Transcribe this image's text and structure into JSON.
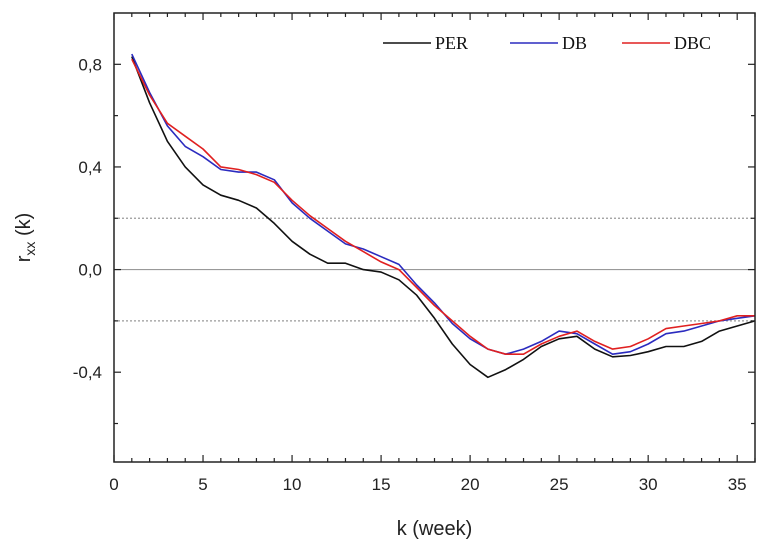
{
  "chart_data": {
    "type": "line",
    "xlabel": "k (week)",
    "ylabel_main": "r",
    "ylabel_sub": "xx",
    "ylabel_suffix": " (k)",
    "xlim": [
      0,
      36
    ],
    "ylim": [
      -0.75,
      1.0
    ],
    "xticks": [
      0,
      5,
      10,
      15,
      20,
      25,
      30,
      35
    ],
    "xtick_labels": [
      "0",
      "5",
      "10",
      "15",
      "20",
      "25",
      "30",
      "35"
    ],
    "yticks": [
      0.8,
      0.4,
      0.0,
      -0.4
    ],
    "ytick_labels": [
      "0,8",
      "0,4",
      "0,0",
      "-0,4"
    ],
    "reference_lines": [
      {
        "y": 0.0,
        "style": "solid",
        "color": "#999999"
      },
      {
        "y": 0.2,
        "style": "dotted",
        "color": "#999999"
      },
      {
        "y": -0.2,
        "style": "dotted",
        "color": "#999999"
      }
    ],
    "legend_position": "top-right",
    "x": [
      1,
      2,
      3,
      4,
      5,
      6,
      7,
      8,
      9,
      10,
      11,
      12,
      13,
      14,
      15,
      16,
      17,
      18,
      19,
      20,
      21,
      22,
      23,
      24,
      25,
      26,
      27,
      28,
      29,
      30,
      31,
      32,
      33,
      34,
      35,
      36
    ],
    "series": [
      {
        "name": "PER",
        "color": "#111111",
        "values": [
          0.83,
          0.65,
          0.5,
          0.4,
          0.33,
          0.29,
          0.27,
          0.24,
          0.18,
          0.11,
          0.06,
          0.025,
          0.025,
          0.0,
          -0.01,
          -0.04,
          -0.1,
          -0.19,
          -0.29,
          -0.37,
          -0.42,
          -0.39,
          -0.35,
          -0.3,
          -0.27,
          -0.26,
          -0.31,
          -0.34,
          -0.335,
          -0.32,
          -0.3,
          -0.3,
          -0.28,
          -0.24,
          -0.22,
          -0.2
        ]
      },
      {
        "name": "DB",
        "color": "#2b2bbf",
        "values": [
          0.84,
          0.69,
          0.56,
          0.48,
          0.44,
          0.39,
          0.38,
          0.38,
          0.35,
          0.26,
          0.2,
          0.15,
          0.1,
          0.08,
          0.05,
          0.02,
          -0.06,
          -0.13,
          -0.21,
          -0.27,
          -0.31,
          -0.33,
          -0.31,
          -0.28,
          -0.24,
          -0.25,
          -0.29,
          -0.33,
          -0.32,
          -0.29,
          -0.25,
          -0.24,
          -0.22,
          -0.2,
          -0.19,
          -0.18
        ]
      },
      {
        "name": "DBC",
        "color": "#e02020",
        "values": [
          0.82,
          0.68,
          0.57,
          0.52,
          0.47,
          0.4,
          0.39,
          0.37,
          0.34,
          0.27,
          0.21,
          0.16,
          0.11,
          0.07,
          0.03,
          0.0,
          -0.07,
          -0.14,
          -0.2,
          -0.26,
          -0.31,
          -0.33,
          -0.33,
          -0.29,
          -0.26,
          -0.24,
          -0.28,
          -0.31,
          -0.3,
          -0.27,
          -0.23,
          -0.22,
          -0.21,
          -0.2,
          -0.18,
          -0.18
        ]
      }
    ]
  }
}
